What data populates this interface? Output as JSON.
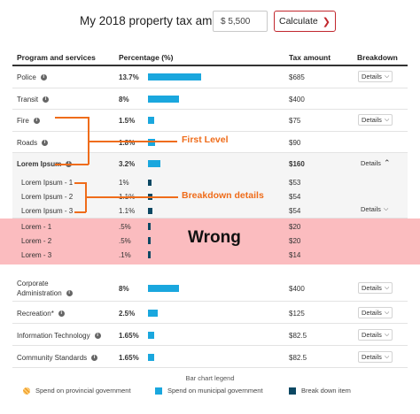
{
  "header": {
    "title": "My 2018 property tax amount",
    "amount_value": "$ 5,500",
    "calculate_label": "Calculate"
  },
  "columns": [
    "Program and services",
    "Percentage (%)",
    "Tax amount",
    "Breakdown"
  ],
  "rows": [
    {
      "name": "Police",
      "pct": "13.7%",
      "fraction": 0.137,
      "tax": "$685",
      "breakdown": "Details"
    },
    {
      "name": "Transit",
      "pct": "8%",
      "fraction": 0.08,
      "tax": "$400",
      "breakdown": ""
    },
    {
      "name": "Fire",
      "pct": "1.5%",
      "fraction": 0.015,
      "tax": "$75",
      "breakdown": "Details"
    },
    {
      "name": "Roads",
      "pct": "1.8%",
      "fraction": 0.018,
      "tax": "$90",
      "breakdown": ""
    },
    {
      "name": "Lorem Ipsum",
      "pct": "3.2%",
      "fraction": 0.032,
      "tax": "$160",
      "breakdown": "Details"
    },
    {
      "name": "Lorem Ipsum - 1",
      "pct": "1%",
      "fraction": 0.01,
      "tax": "$53"
    },
    {
      "name": "Lorem Ipsum - 2",
      "pct": "1.1%",
      "fraction": 0.011,
      "tax": "$54"
    },
    {
      "name": "Lorem Ipsum - 3",
      "pct": "1.1%",
      "fraction": 0.011,
      "tax": "$54",
      "breakdown": "Details"
    },
    {
      "name": "Lorem - 1",
      "pct": ".5%",
      "fraction": 0.005,
      "tax": "$20"
    },
    {
      "name": "Lorem - 2",
      "pct": ".5%",
      "fraction": 0.005,
      "tax": "$20"
    },
    {
      "name": "Lorem - 3",
      "pct": ".1%",
      "fraction": 0.001,
      "tax": "$14"
    },
    {
      "name_line1": "Corporate",
      "name_line2": "Administration",
      "pct": "8%",
      "fraction": 0.08,
      "tax": "$400",
      "breakdown": "Details"
    },
    {
      "name": "Recreation*",
      "pct": "2.5%",
      "fraction": 0.025,
      "tax": "$125",
      "breakdown": "Details"
    },
    {
      "name": "Information Technology",
      "pct": "1.65%",
      "fraction": 0.0165,
      "tax": "$82.5",
      "breakdown": "Details"
    },
    {
      "name": "Community Standards",
      "pct": "1.65%",
      "fraction": 0.0165,
      "tax": "$82.5",
      "breakdown": "Details"
    }
  ],
  "annotations": {
    "first_level": "First Level",
    "breakdown_details": "Breakdown details",
    "wrong": "Wrong"
  },
  "legend": {
    "title": "Bar chart legend",
    "provincial": "Spend on provincial government",
    "municipal": "Spend on municipal government",
    "breakdown": "Break down item"
  },
  "colors": {
    "municipal_bar": "#1aa7de",
    "breakdown_bar": "#0c4863",
    "accent_red": "#c1272d",
    "annotation_orange": "#ef6c1a",
    "wrong_band": "#fbbcbf"
  }
}
